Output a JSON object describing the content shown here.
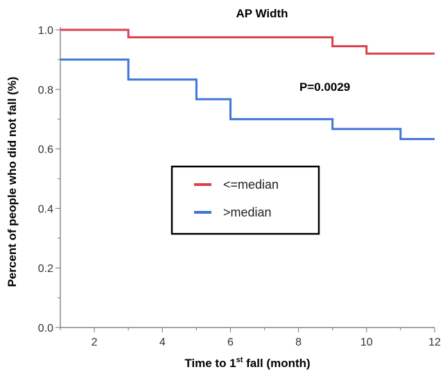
{
  "chart_data": {
    "type": "line",
    "step": true,
    "title": "AP Width",
    "xlabel_main": "Time to 1",
    "xlabel_sup": "st",
    "xlabel_tail": " fall (month)",
    "ylabel": "Percent of people who did not fall (%)",
    "xlim": [
      1,
      12
    ],
    "ylim": [
      0,
      1
    ],
    "xticks": [
      2,
      4,
      6,
      8,
      10,
      12
    ],
    "yticks": [
      "0.0",
      "0.2",
      "0.4",
      "0.6",
      "0.8",
      "1.0"
    ],
    "annotation": "P=0.0029",
    "legend_position": "center",
    "series": [
      {
        "name": "<=median",
        "color": "#d9414f",
        "x": [
          1,
          3,
          3,
          9,
          9,
          10,
          10,
          12
        ],
        "y": [
          1.0,
          1.0,
          0.975,
          0.975,
          0.945,
          0.945,
          0.92,
          0.92
        ]
      },
      {
        "name": ">median",
        "color": "#3f74d8",
        "x": [
          1,
          3,
          3,
          5,
          5,
          6,
          6,
          9,
          9,
          11,
          11,
          12
        ],
        "y": [
          0.9,
          0.9,
          0.833,
          0.833,
          0.767,
          0.767,
          0.7,
          0.7,
          0.667,
          0.667,
          0.633,
          0.633
        ]
      }
    ]
  }
}
